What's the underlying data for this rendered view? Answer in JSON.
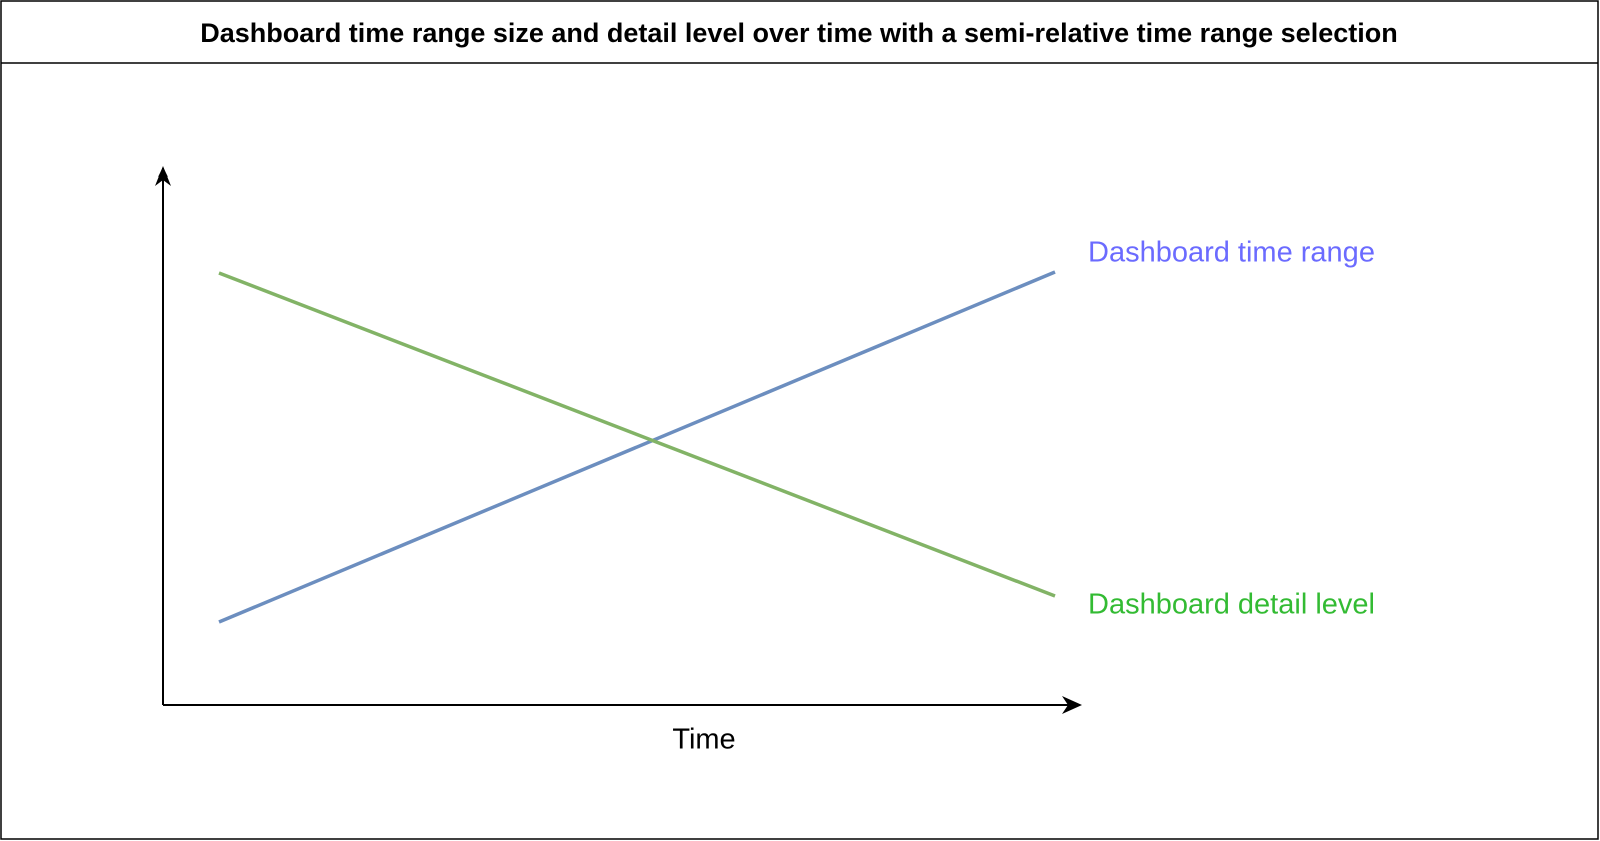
{
  "title": "Dashboard time range size and detail level over time with a semi-relative time range selection",
  "diagram": {
    "x_axis_label": "Time",
    "lines": [
      {
        "label": "Dashboard time range"
      },
      {
        "label": "Dashboard detail level"
      }
    ]
  }
}
